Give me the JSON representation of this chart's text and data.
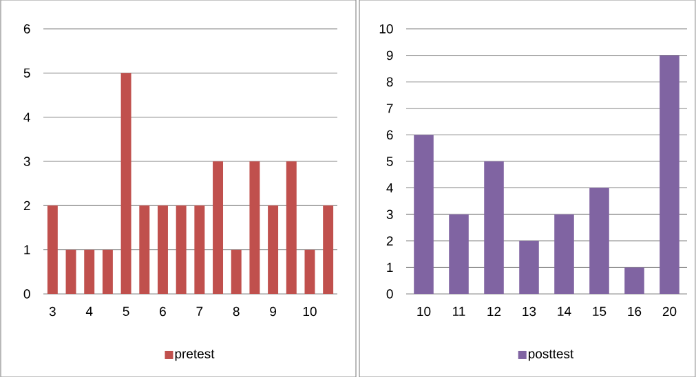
{
  "chart_data": [
    {
      "type": "bar",
      "categories": [
        "3",
        null,
        "4",
        null,
        "5",
        null,
        "6",
        null,
        "7",
        null,
        "8",
        null,
        "9",
        null,
        "10",
        null
      ],
      "series": [
        {
          "name": "pretest",
          "color": "#c0504d",
          "values": [
            2,
            1,
            1,
            1,
            5,
            2,
            2,
            2,
            2,
            3,
            1,
            3,
            2,
            3,
            1,
            2
          ]
        }
      ],
      "ylim": [
        0,
        6
      ],
      "yticks": [
        0,
        1,
        2,
        3,
        4,
        5,
        6
      ],
      "grid": "y",
      "legend": "bottom"
    },
    {
      "type": "bar",
      "categories": [
        "10",
        "11",
        "12",
        "13",
        "14",
        "15",
        "16",
        "20"
      ],
      "series": [
        {
          "name": "posttest",
          "color": "#8064a2",
          "values": [
            6,
            3,
            5,
            2,
            3,
            4,
            1,
            9
          ]
        }
      ],
      "ylim": [
        0,
        10
      ],
      "yticks": [
        0,
        1,
        2,
        3,
        4,
        5,
        6,
        7,
        8,
        9,
        10
      ],
      "grid": "y",
      "legend": "bottom"
    }
  ]
}
